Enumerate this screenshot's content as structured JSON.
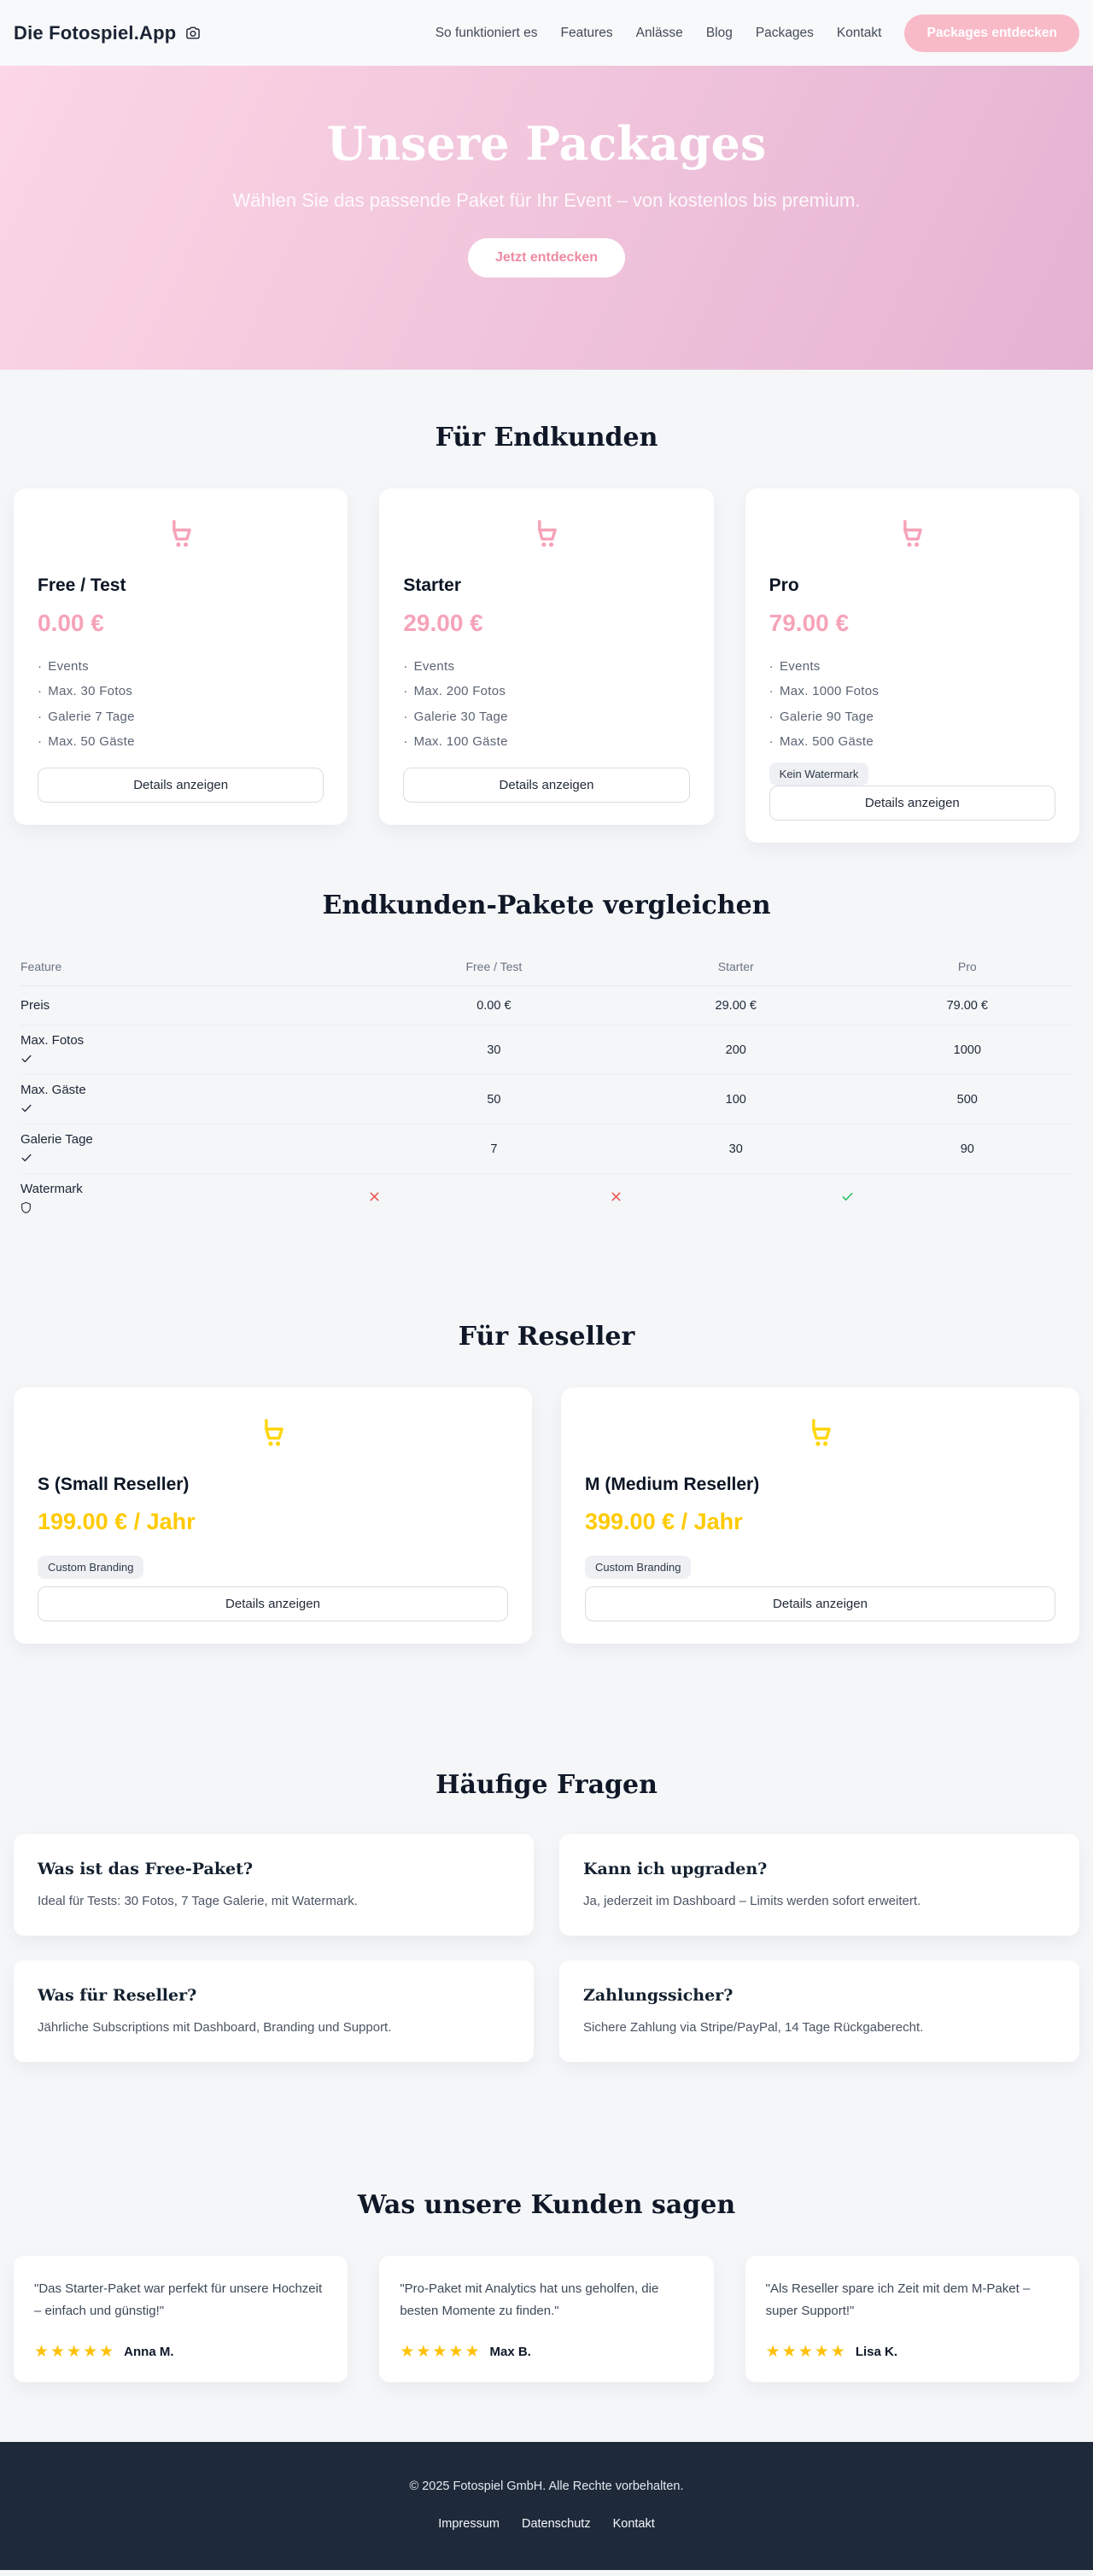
{
  "colors": {
    "pink_accent": "#f6a3b8",
    "pink_cta_text": "#ef8aa2",
    "nav_pill_bg": "#f9bac8",
    "hero_gradient_start": "#fcd7e5",
    "hero_gradient_end": "#e5b2d2",
    "gold_price": "#ffca00",
    "gold_icon": "#ffd60a",
    "star_gold": "#ffc107",
    "footer_bg": "#1e2a3a",
    "check_green": "#2fbf62",
    "cross_red": "#ef5350"
  },
  "brand": {
    "name": "Die Fotospiel.App",
    "logo_icon": "camera-icon"
  },
  "nav": {
    "links": [
      "So funktioniert es",
      "Features",
      "Anlässe",
      "Blog",
      "Packages",
      "Kontakt"
    ],
    "cta_label": "Packages entdecken"
  },
  "hero": {
    "title": "Unsere Packages",
    "subtitle": "Wählen Sie das passende Paket für Ihr Event – von kostenlos bis premium.",
    "cta_label": "Jetzt entdecken"
  },
  "endkunden": {
    "heading": "Für Endkunden",
    "details_label": "Details anzeigen",
    "card_icon": "shopping-cart-icon",
    "plans": [
      {
        "name": "Free / Test",
        "price": "0.00 €",
        "features": [
          "Events",
          "Max. 30 Fotos",
          "Galerie 7 Tage",
          "Max. 50 Gäste"
        ],
        "badge": null
      },
      {
        "name": "Starter",
        "price": "29.00 €",
        "features": [
          "Events",
          "Max. 200 Fotos",
          "Galerie 30 Tage",
          "Max. 100 Gäste"
        ],
        "badge": null
      },
      {
        "name": "Pro",
        "price": "79.00 €",
        "features": [
          "Events",
          "Max. 1000 Fotos",
          "Galerie 90 Tage",
          "Max. 500 Gäste"
        ],
        "badge": "Kein Watermark"
      }
    ]
  },
  "comparison": {
    "heading": "Endkunden-Pakete vergleichen",
    "columns": [
      "Feature",
      "Free / Test",
      "Starter",
      "Pro"
    ],
    "rows": [
      {
        "feature": "Preis",
        "icon": null,
        "type": "text",
        "values": [
          "0.00 €",
          "29.00 €",
          "79.00 €"
        ]
      },
      {
        "feature": "Max. Fotos",
        "icon": "check",
        "type": "text",
        "values": [
          "30",
          "200",
          "1000"
        ]
      },
      {
        "feature": "Max. Gäste",
        "icon": "check",
        "type": "text",
        "values": [
          "50",
          "100",
          "500"
        ]
      },
      {
        "feature": "Galerie Tage",
        "icon": "check",
        "type": "text",
        "values": [
          "7",
          "30",
          "90"
        ]
      },
      {
        "feature": "Watermark",
        "icon": "shield",
        "type": "boolean",
        "values": [
          false,
          false,
          true
        ]
      }
    ]
  },
  "reseller": {
    "heading": "Für Reseller",
    "details_label": "Details anzeigen",
    "card_icon": "shopping-cart-icon",
    "plans": [
      {
        "name": "S (Small Reseller)",
        "price": "199.00 € / Jahr",
        "badge": "Custom Branding"
      },
      {
        "name": "M (Medium Reseller)",
        "price": "399.00 € / Jahr",
        "badge": "Custom Branding"
      }
    ]
  },
  "faq": {
    "heading": "Häufige Fragen",
    "items": [
      {
        "question": "Was ist das Free-Paket?",
        "answer": "Ideal für Tests: 30 Fotos, 7 Tage Galerie, mit Watermark."
      },
      {
        "question": "Kann ich upgraden?",
        "answer": "Ja, jederzeit im Dashboard – Limits werden sofort erweitert."
      },
      {
        "question": "Was für Reseller?",
        "answer": "Jährliche Subscriptions mit Dashboard, Branding und Support."
      },
      {
        "question": "Zahlungssicher?",
        "answer": "Sichere Zahlung via Stripe/PayPal, 14 Tage Rückgaberecht."
      }
    ]
  },
  "testimonials": {
    "heading": "Was unsere Kunden sagen",
    "items": [
      {
        "quote": "\"Das Starter-Paket war perfekt für unsere Hochzeit – einfach und günstig!\"",
        "rating": 5,
        "name": "Anna M."
      },
      {
        "quote": "\"Pro-Paket mit Analytics hat uns geholfen, die besten Momente zu finden.\"",
        "rating": 5,
        "name": "Max B."
      },
      {
        "quote": "\"Als Reseller spare ich Zeit mit dem M-Paket – super Support!\"",
        "rating": 5,
        "name": "Lisa K."
      }
    ]
  },
  "footer": {
    "copyright": "© 2025 Fotospiel GmbH. Alle Rechte vorbehalten.",
    "links": [
      "Impressum",
      "Datenschutz",
      "Kontakt"
    ]
  }
}
